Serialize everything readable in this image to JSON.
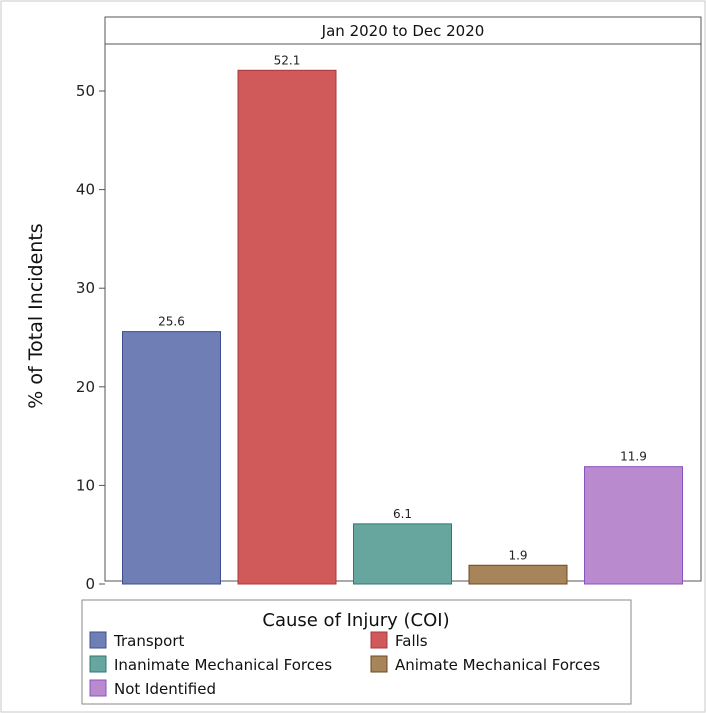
{
  "chart_data": {
    "type": "bar",
    "title": "Jan 2020 to Dec 2020",
    "xlabel": "",
    "ylabel": "% of Total Incidents",
    "ylim": [
      0,
      55
    ],
    "yticks": [
      0,
      10,
      20,
      30,
      40,
      50
    ],
    "grid": false,
    "categories": [
      "Transport",
      "Falls",
      "Inanimate Mechanical Forces",
      "Animate Mechanical Forces",
      "Not Identified"
    ],
    "values": [
      25.6,
      52.1,
      6.1,
      1.9,
      11.9
    ],
    "value_labels": [
      "25.6",
      "52.1",
      "6.1",
      "1.9",
      "11.9"
    ],
    "colors": [
      "#6f7fb6",
      "#d05a5a",
      "#66a69f",
      "#a8845a",
      "#b98acd"
    ],
    "border_colors": [
      "#3e4f8f",
      "#a83a3a",
      "#2f7a72",
      "#6b4a22",
      "#8a52c0"
    ],
    "legend": {
      "title": "Cause of Injury (COI)",
      "placement": "bottom",
      "items": [
        "Transport",
        "Falls",
        "Inanimate Mechanical Forces",
        "Animate Mechanical Forces",
        "Not Identified"
      ]
    }
  }
}
